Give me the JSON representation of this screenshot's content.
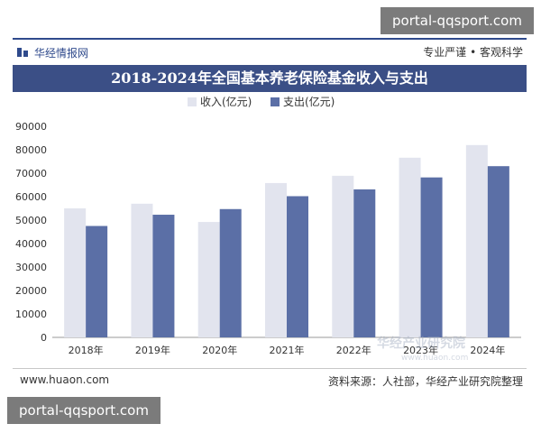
{
  "watermark": {
    "top": "portal-qqsport.com",
    "bottom": "portal-qqsport.com"
  },
  "header": {
    "brand": "华经情报网",
    "slogan": "专业严谨 • 客观科学"
  },
  "footer": {
    "website": "www.huaon.com",
    "source": "资料来源：人社部，华经产业研究院整理"
  },
  "overlay_watermark": {
    "line1": "华经产业研究院",
    "line2": "www.huaon.com"
  },
  "colors": {
    "income": "#e2e4ee",
    "expense": "#5b6fa6",
    "title_bar": "#3b4f86"
  },
  "chart_data": {
    "type": "bar",
    "title": "2018-2024年全国基本养老保险基金收入与支出",
    "categories": [
      "2018年",
      "2019年",
      "2020年",
      "2021年",
      "2022年",
      "2023年",
      "2024年"
    ],
    "series": [
      {
        "name": "收入(亿元)",
        "values": [
          55000,
          57000,
          49200,
          65800,
          68900,
          76600,
          82000
        ]
      },
      {
        "name": "支出(亿元)",
        "values": [
          47500,
          52300,
          54700,
          60200,
          63100,
          68200,
          73000
        ]
      }
    ],
    "yticks": [
      "0",
      "10000",
      "20000",
      "30000",
      "40000",
      "50000",
      "60000",
      "70000",
      "80000",
      "90000"
    ],
    "ylim": [
      0,
      90000
    ],
    "xlabel": "",
    "ylabel": "",
    "legend": "top-center"
  }
}
